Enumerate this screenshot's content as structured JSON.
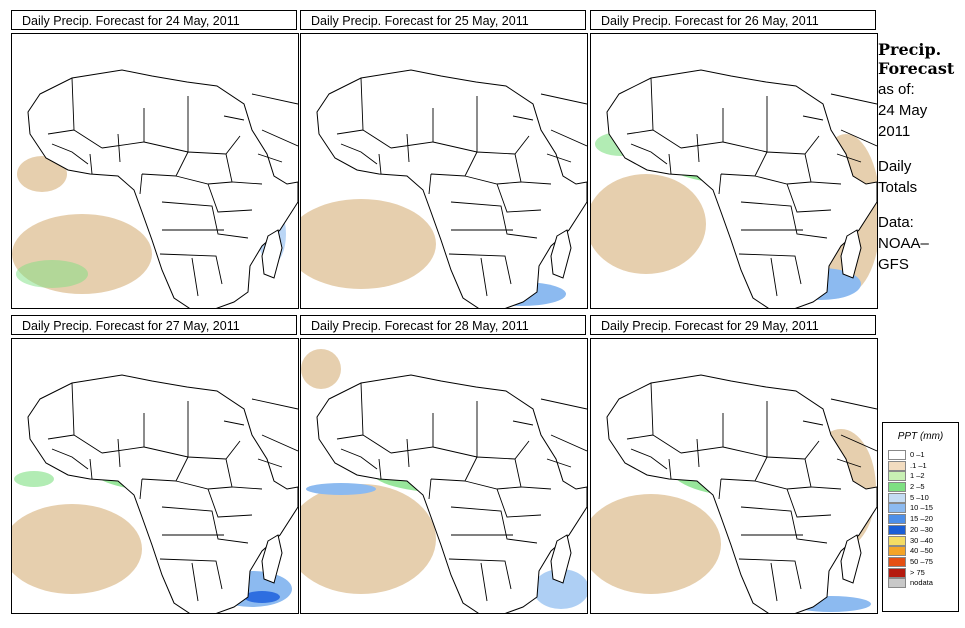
{
  "panels": [
    {
      "title": "Daily Precip. Forecast for  24 May, 2011"
    },
    {
      "title": "Daily Precip. Forecast for  25 May, 2011"
    },
    {
      "title": "Daily Precip. Forecast for  26 May, 2011"
    },
    {
      "title": "Daily Precip. Forecast for  27 May, 2011"
    },
    {
      "title": "Daily Precip. Forecast for  28 May, 2011"
    },
    {
      "title": "Daily Precip. Forecast for  29 May, 2011"
    }
  ],
  "sidebar": {
    "title_line1": "Precip.",
    "title_line2": "Forecast",
    "asof_label": "as of:",
    "asof_date1": "24 May",
    "asof_date2": "2011",
    "totals_line1": "Daily",
    "totals_line2": "Totals",
    "data_line1": "Data:",
    "data_line2": "NOAA–",
    "data_line3": "GFS"
  },
  "legend": {
    "title": "PPT (mm)",
    "items": [
      {
        "label": "0 –1",
        "color": "#ffffff"
      },
      {
        "label": ".1 –1",
        "color": "#f2dcc0"
      },
      {
        "label": "1 –2",
        "color": "#c8f0b4"
      },
      {
        "label": "2 –5",
        "color": "#7ee082"
      },
      {
        "label": "5 –10",
        "color": "#c4dcf4"
      },
      {
        "label": "10 –15",
        "color": "#8cbaf0"
      },
      {
        "label": "15 –20",
        "color": "#4e8fe8"
      },
      {
        "label": "20 –30",
        "color": "#1a5ed6"
      },
      {
        "label": "30 –40",
        "color": "#f4dc64"
      },
      {
        "label": "40 –50",
        "color": "#f4a428"
      },
      {
        "label": "50 –75",
        "color": "#e45014"
      },
      {
        "label": "> 75",
        "color": "#b41a0e"
      },
      {
        "label": "nodata",
        "color": "#c8c8c8"
      }
    ]
  },
  "colors": {
    "land": "#ffffff",
    "dry": "#e6cfae",
    "light": "#c8f0b4",
    "moderate": "#7ee082",
    "wet": "#8cbaf0",
    "heavy": "#2e6ee0",
    "extreme": "#c8281a",
    "border": "#000000"
  }
}
